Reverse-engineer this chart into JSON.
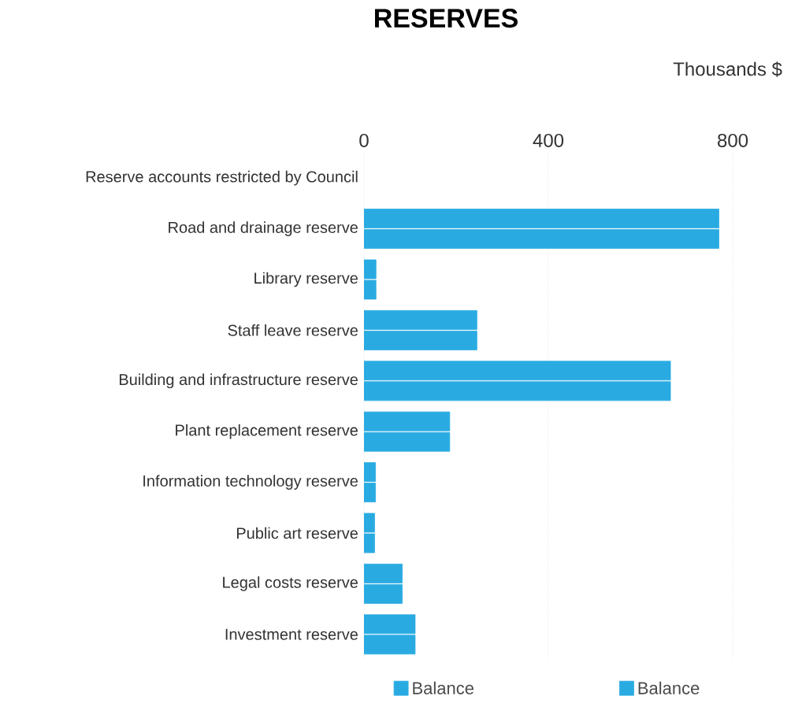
{
  "chart_data": {
    "type": "bar",
    "orientation": "horizontal",
    "title": "RESERVES",
    "xlabel": "Thousands $",
    "categories": [
      "Reserve accounts restricted by Council",
      "Road and drainage reserve",
      "Library reserve",
      "Staff leave reserve",
      "Building and infrastructure reserve",
      "Plant replacement reserve",
      "Information technology reserve",
      "Public art reserve",
      "Legal costs reserve",
      "Investment reserve"
    ],
    "series": [
      {
        "name": "Balance",
        "color": "#29abe2",
        "values": [
          null,
          770,
          26,
          245,
          665,
          186,
          25,
          23,
          83,
          111
        ]
      },
      {
        "name": "Balance",
        "color": "#29abe2",
        "values": [
          null,
          770,
          26,
          245,
          665,
          186,
          25,
          23,
          83,
          111
        ]
      }
    ],
    "xlim": [
      0,
      800
    ],
    "xticks": [
      0,
      400,
      800
    ],
    "grid": "x",
    "legend": "bottom"
  }
}
